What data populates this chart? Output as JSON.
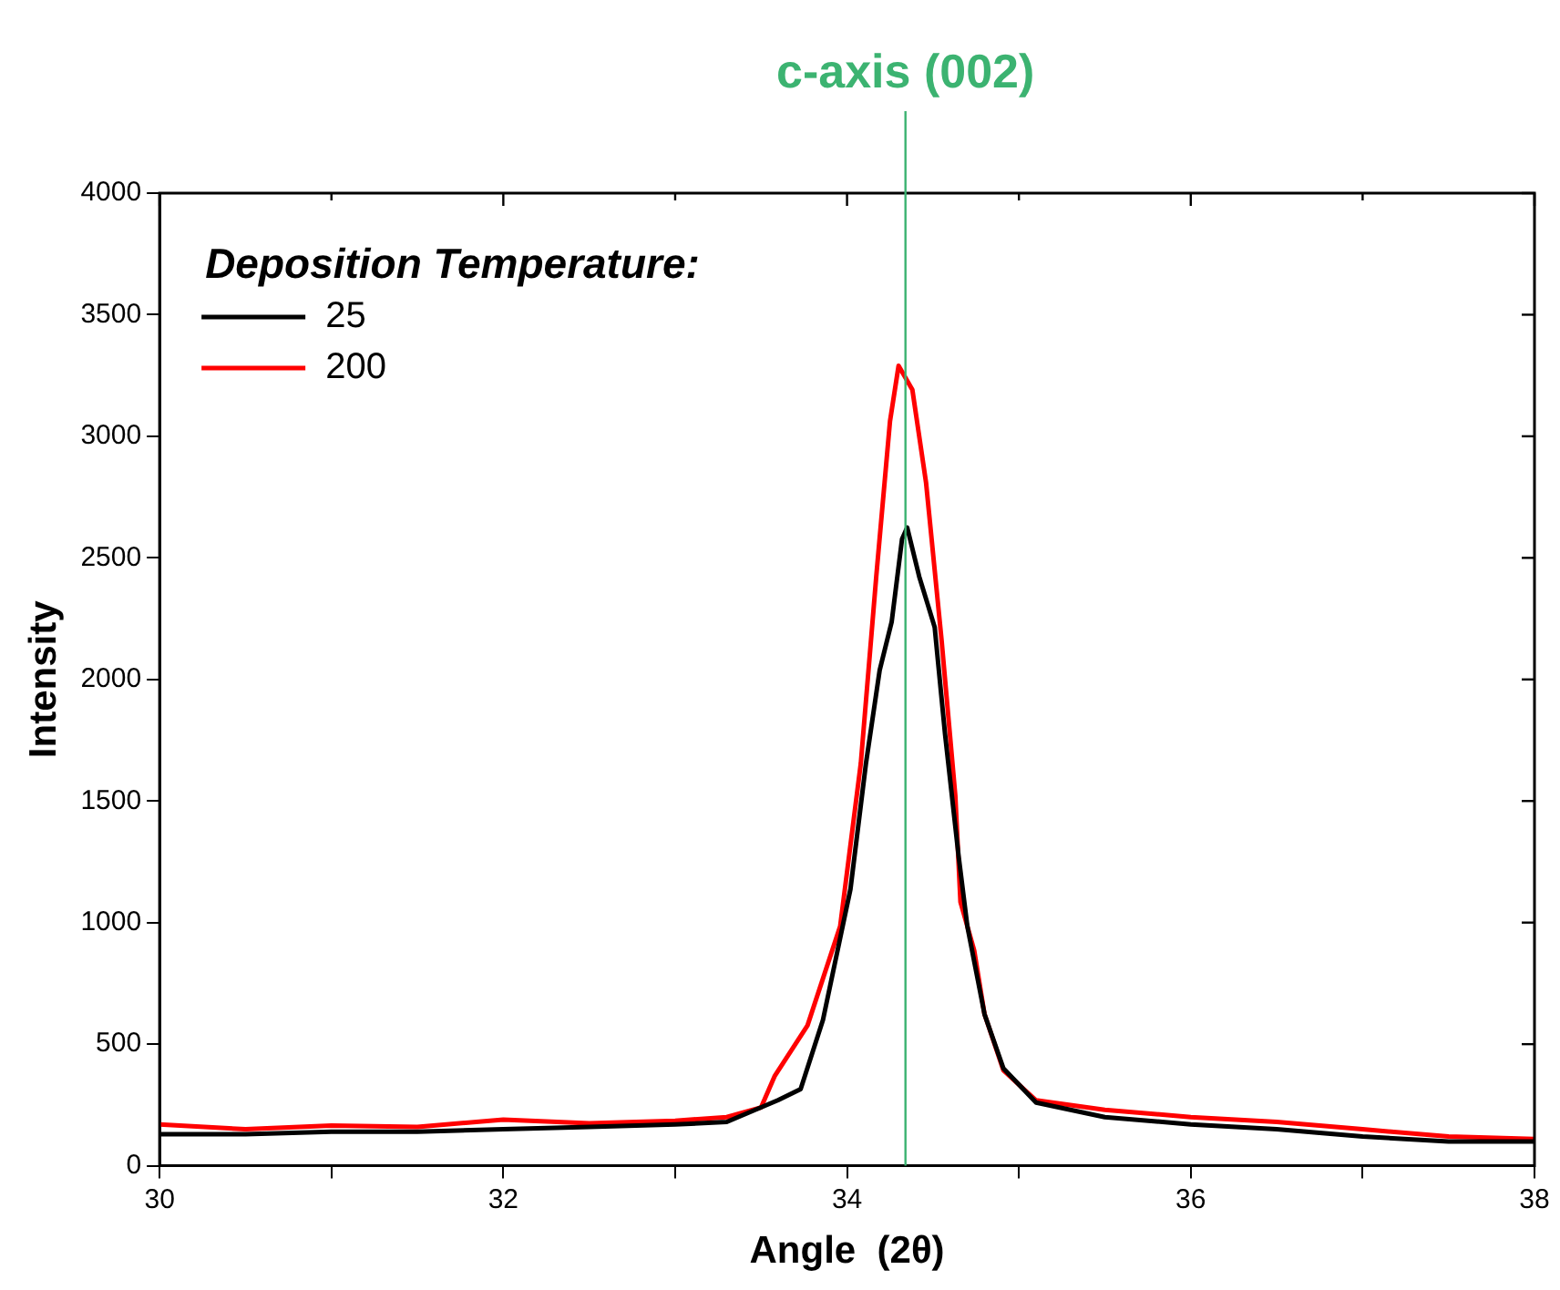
{
  "chart_data": {
    "type": "line",
    "xlabel": "Angle  (2θ)",
    "ylabel": "Intensity",
    "legend_title": "Deposition Temperature:",
    "legend": "top left",
    "marker": "none",
    "line_style": "solid",
    "xlim": [
      30,
      38
    ],
    "xticks": [
      30,
      {
        "value": 31,
        "label": null
      },
      32,
      {
        "value": 33,
        "label": null
      },
      34,
      {
        "value": 35,
        "label": null
      },
      36,
      {
        "value": 37,
        "label": null
      },
      38
    ],
    "ylim": [
      0,
      4000
    ],
    "yticks": [
      0,
      500,
      1000,
      1500,
      2000,
      2500,
      3000,
      3500,
      4000
    ],
    "ref_lines": [
      {
        "axis": "x",
        "value": 34.34,
        "label": "c-axis (002)",
        "color": "#3cb371"
      }
    ],
    "series": [
      {
        "name": "25",
        "color": "#000000",
        "x": [
          30,
          30.5,
          31,
          31.5,
          32,
          32.5,
          33,
          33.3,
          33.5,
          33.6,
          33.73,
          33.86,
          34.02,
          34.11,
          34.19,
          34.26,
          34.32,
          34.35,
          34.42,
          34.51,
          34.57,
          34.65,
          34.7,
          34.8,
          34.91,
          35.1,
          35.5,
          36,
          36.5,
          37,
          37.5,
          38
        ],
        "values": [
          130,
          130,
          140,
          140,
          150,
          160,
          170,
          180,
          240,
          270,
          315,
          600,
          1138,
          1654,
          2038,
          2238,
          2577,
          2625,
          2423,
          2215,
          1777,
          1269,
          985,
          623,
          400,
          260,
          200,
          170,
          150,
          120,
          100,
          100
        ]
      },
      {
        "name": "200",
        "color": "#ff0000",
        "x": [
          30,
          30.5,
          31,
          31.5,
          32,
          32.5,
          33,
          33.3,
          33.5,
          33.58,
          33.77,
          33.96,
          34.08,
          34.17,
          34.25,
          34.3,
          34.38,
          34.46,
          34.55,
          34.63,
          34.66,
          34.74,
          34.8,
          34.91,
          35.1,
          35.5,
          36,
          36.5,
          37,
          37.5,
          38
        ],
        "values": [
          170,
          150,
          165,
          160,
          190,
          175,
          185,
          200,
          240,
          370,
          577,
          985,
          1654,
          2423,
          3062,
          3290,
          3192,
          2808,
          2162,
          1523,
          1085,
          885,
          623,
          392,
          269,
          230,
          200,
          180,
          150,
          120,
          110
        ]
      }
    ]
  }
}
